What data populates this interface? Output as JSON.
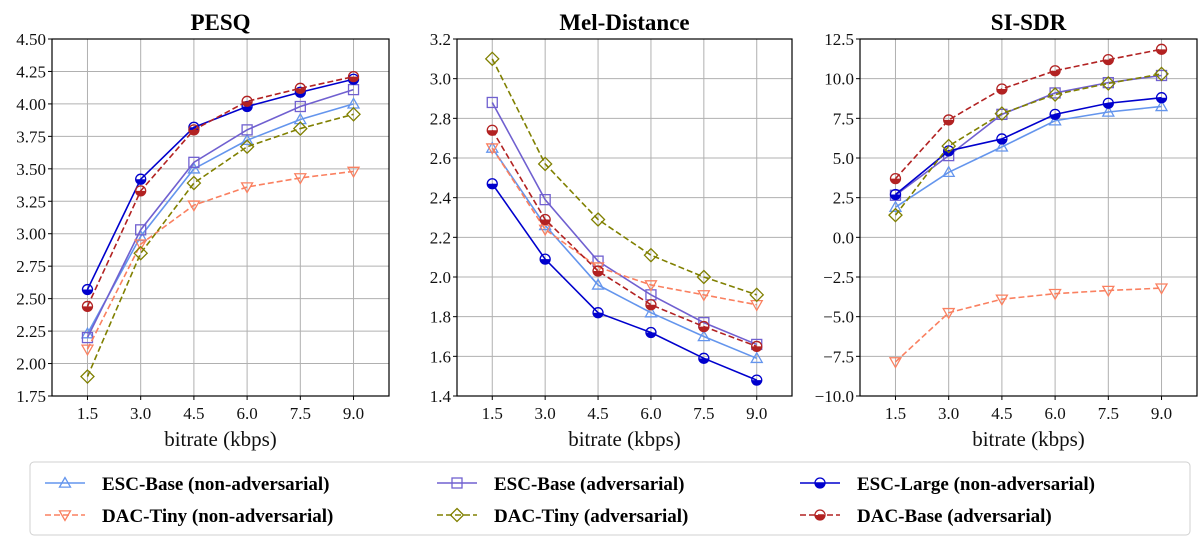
{
  "chart_data": [
    {
      "type": "line",
      "title": "PESQ",
      "xlabel": "bitrate (kbps)",
      "ylabel": "",
      "x": [
        1.5,
        3.0,
        4.5,
        6.0,
        7.5,
        9.0
      ],
      "xlim": [
        0.5,
        10.0
      ],
      "xticks": [
        "1.5",
        "3.0",
        "4.5",
        "6.0",
        "7.5",
        "9.0"
      ],
      "ylim": [
        1.75,
        4.5
      ],
      "yticks": [
        "1.75",
        "2.00",
        "2.25",
        "2.50",
        "2.75",
        "3.00",
        "3.25",
        "3.50",
        "3.75",
        "4.00",
        "4.25",
        "4.50"
      ],
      "grid": true,
      "series": [
        {
          "name": "ESC-Base (non-adversarial)",
          "values": [
            2.23,
            2.98,
            3.5,
            3.72,
            3.88,
            4.0
          ]
        },
        {
          "name": "ESC-Base (adversarial)",
          "values": [
            2.2,
            3.03,
            3.55,
            3.8,
            3.98,
            4.11
          ]
        },
        {
          "name": "ESC-Large (non-adversarial)",
          "values": [
            2.57,
            3.42,
            3.82,
            3.98,
            4.09,
            4.19
          ]
        },
        {
          "name": "DAC-Tiny (non-adversarial)",
          "values": [
            2.11,
            2.92,
            3.22,
            3.36,
            3.43,
            3.48
          ]
        },
        {
          "name": "DAC-Tiny (adversarial)",
          "values": [
            1.9,
            2.85,
            3.39,
            3.67,
            3.81,
            3.92
          ]
        },
        {
          "name": "DAC-Base (adversarial)",
          "values": [
            2.44,
            3.33,
            3.8,
            4.02,
            4.12,
            4.21
          ]
        }
      ]
    },
    {
      "type": "line",
      "title": "Mel-Distance",
      "xlabel": "bitrate (kbps)",
      "ylabel": "",
      "x": [
        1.5,
        3.0,
        4.5,
        6.0,
        7.5,
        9.0
      ],
      "xlim": [
        0.5,
        10.0
      ],
      "xticks": [
        "1.5",
        "3.0",
        "4.5",
        "6.0",
        "7.5",
        "9.0"
      ],
      "ylim": [
        1.4,
        3.2
      ],
      "yticks": [
        "1.4",
        "1.6",
        "1.8",
        "2.0",
        "2.2",
        "2.4",
        "2.6",
        "2.8",
        "3.0",
        "3.2"
      ],
      "grid": true,
      "series": [
        {
          "name": "ESC-Base (non-adversarial)",
          "values": [
            2.65,
            2.26,
            1.96,
            1.82,
            1.7,
            1.59
          ]
        },
        {
          "name": "ESC-Base (adversarial)",
          "values": [
            2.88,
            2.39,
            2.08,
            1.91,
            1.77,
            1.66
          ]
        },
        {
          "name": "ESC-Large (non-adversarial)",
          "values": [
            2.47,
            2.09,
            1.82,
            1.72,
            1.59,
            1.48
          ]
        },
        {
          "name": "DAC-Tiny (non-adversarial)",
          "values": [
            2.65,
            2.24,
            2.05,
            1.96,
            1.91,
            1.86
          ]
        },
        {
          "name": "DAC-Tiny (adversarial)",
          "values": [
            3.1,
            2.57,
            2.29,
            2.11,
            2.0,
            1.91
          ]
        },
        {
          "name": "DAC-Base (adversarial)",
          "values": [
            2.74,
            2.29,
            2.03,
            1.86,
            1.75,
            1.65
          ]
        }
      ]
    },
    {
      "type": "line",
      "title": "SI-SDR",
      "xlabel": "bitrate (kbps)",
      "ylabel": "",
      "x": [
        1.5,
        3.0,
        4.5,
        6.0,
        7.5,
        9.0
      ],
      "xlim": [
        0.5,
        10.0
      ],
      "xticks": [
        "1.5",
        "3.0",
        "4.5",
        "6.0",
        "7.5",
        "9.0"
      ],
      "ylim": [
        -10.0,
        12.5
      ],
      "yticks": [
        "−10.0",
        "−7.5",
        "−5.0",
        "−2.5",
        "0.0",
        "2.5",
        "5.0",
        "7.5",
        "10.0",
        "12.5"
      ],
      "grid": true,
      "series": [
        {
          "name": "ESC-Base (non-adversarial)",
          "values": [
            1.9,
            4.1,
            5.7,
            7.35,
            7.9,
            8.25
          ]
        },
        {
          "name": "ESC-Base (adversarial)",
          "values": [
            2.65,
            5.15,
            7.75,
            9.1,
            9.75,
            10.2
          ]
        },
        {
          "name": "ESC-Large (non-adversarial)",
          "values": [
            2.7,
            5.45,
            6.2,
            7.75,
            8.45,
            8.8
          ]
        },
        {
          "name": "DAC-Tiny (non-adversarial)",
          "values": [
            -7.85,
            -4.75,
            -3.9,
            -3.55,
            -3.35,
            -3.2
          ]
        },
        {
          "name": "DAC-Tiny (adversarial)",
          "values": [
            1.4,
            5.75,
            7.8,
            9.0,
            9.7,
            10.3
          ]
        },
        {
          "name": "DAC-Base (adversarial)",
          "values": [
            3.7,
            7.4,
            9.35,
            10.5,
            11.2,
            11.85
          ]
        }
      ]
    }
  ],
  "legend": {
    "placement": "bottom",
    "entries": [
      {
        "label": "ESC-Base (non-adversarial)",
        "color": "#6495ED",
        "marker": "triangle-up",
        "dashed": false
      },
      {
        "label": "ESC-Base (adversarial)",
        "color": "#7060D0",
        "marker": "square",
        "dashed": false
      },
      {
        "label": "ESC-Large (non-adversarial)",
        "color": "#0000CD",
        "marker": "half-circle",
        "dashed": false
      },
      {
        "label": "DAC-Tiny (non-adversarial)",
        "color": "#FA8060",
        "marker": "triangle-down",
        "dashed": true
      },
      {
        "label": "DAC-Tiny (adversarial)",
        "color": "#808000",
        "marker": "diamond",
        "dashed": true
      },
      {
        "label": "DAC-Base (adversarial)",
        "color": "#B22222",
        "marker": "half-circle",
        "dashed": true
      }
    ]
  }
}
